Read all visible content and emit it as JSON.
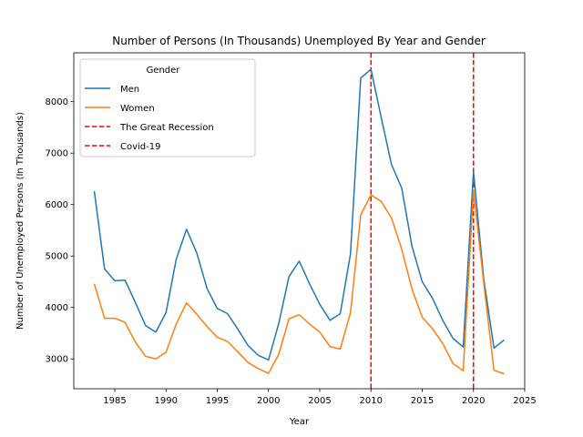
{
  "chart_data": {
    "type": "line",
    "title": "Number of Persons (In Thousands) Unemployed By Year and Gender",
    "xlabel": "Year",
    "ylabel": "Number of Unemployed Persons (In Thousands)",
    "xlim": [
      1981,
      2025
    ],
    "ylim": [
      2420,
      8950
    ],
    "xticks": [
      1985,
      1990,
      1995,
      2000,
      2005,
      2010,
      2015,
      2020,
      2025
    ],
    "yticks": [
      3000,
      4000,
      5000,
      6000,
      7000,
      8000
    ],
    "grid": false,
    "legend": {
      "title": "Gender",
      "placement": "top-left"
    },
    "series": [
      {
        "name": "Men",
        "color": "#1f77b4",
        "x": [
          1983,
          1984,
          1985,
          1986,
          1987,
          1988,
          1989,
          1990,
          1991,
          1992,
          1993,
          1994,
          1995,
          1996,
          1997,
          1998,
          1999,
          2000,
          2001,
          2002,
          2003,
          2004,
          2005,
          2006,
          2007,
          2008,
          2009,
          2010,
          2011,
          2012,
          2013,
          2014,
          2015,
          2016,
          2017,
          2018,
          2019,
          2020,
          2021,
          2022,
          2023
        ],
        "values": [
          6260,
          4750,
          4520,
          4530,
          4100,
          3650,
          3520,
          3900,
          4940,
          5520,
          5060,
          4370,
          3980,
          3880,
          3580,
          3260,
          3070,
          2980,
          3690,
          4600,
          4900,
          4460,
          4060,
          3750,
          3880,
          5040,
          8460,
          8630,
          7690,
          6780,
          6320,
          5190,
          4500,
          4180,
          3750,
          3400,
          3230,
          6640,
          4560,
          3210,
          3370
        ]
      },
      {
        "name": "Women",
        "color": "#ff7f0e",
        "x": [
          1983,
          1984,
          1985,
          1986,
          1987,
          1988,
          1989,
          1990,
          1991,
          1992,
          1993,
          1994,
          1995,
          1996,
          1997,
          1998,
          1999,
          2000,
          2001,
          2002,
          2003,
          2004,
          2005,
          2006,
          2007,
          2008,
          2009,
          2010,
          2011,
          2012,
          2013,
          2014,
          2015,
          2016,
          2017,
          2018,
          2019,
          2020,
          2021,
          2022,
          2023
        ],
        "values": [
          4460,
          3790,
          3790,
          3710,
          3330,
          3050,
          3000,
          3130,
          3680,
          4090,
          3870,
          3630,
          3420,
          3340,
          3140,
          2930,
          2810,
          2720,
          3090,
          3780,
          3860,
          3680,
          3520,
          3240,
          3190,
          3900,
          5800,
          6190,
          6060,
          5740,
          5130,
          4360,
          3810,
          3590,
          3300,
          2910,
          2770,
          6280,
          4480,
          2780,
          2710
        ]
      }
    ],
    "vlines": [
      {
        "name": "The Great Recession",
        "x": 2010,
        "color": "#ff0000",
        "style": "dashed"
      },
      {
        "name": "Covid-19",
        "x": 2020,
        "color": "#ff0000",
        "style": "dashed"
      }
    ]
  }
}
